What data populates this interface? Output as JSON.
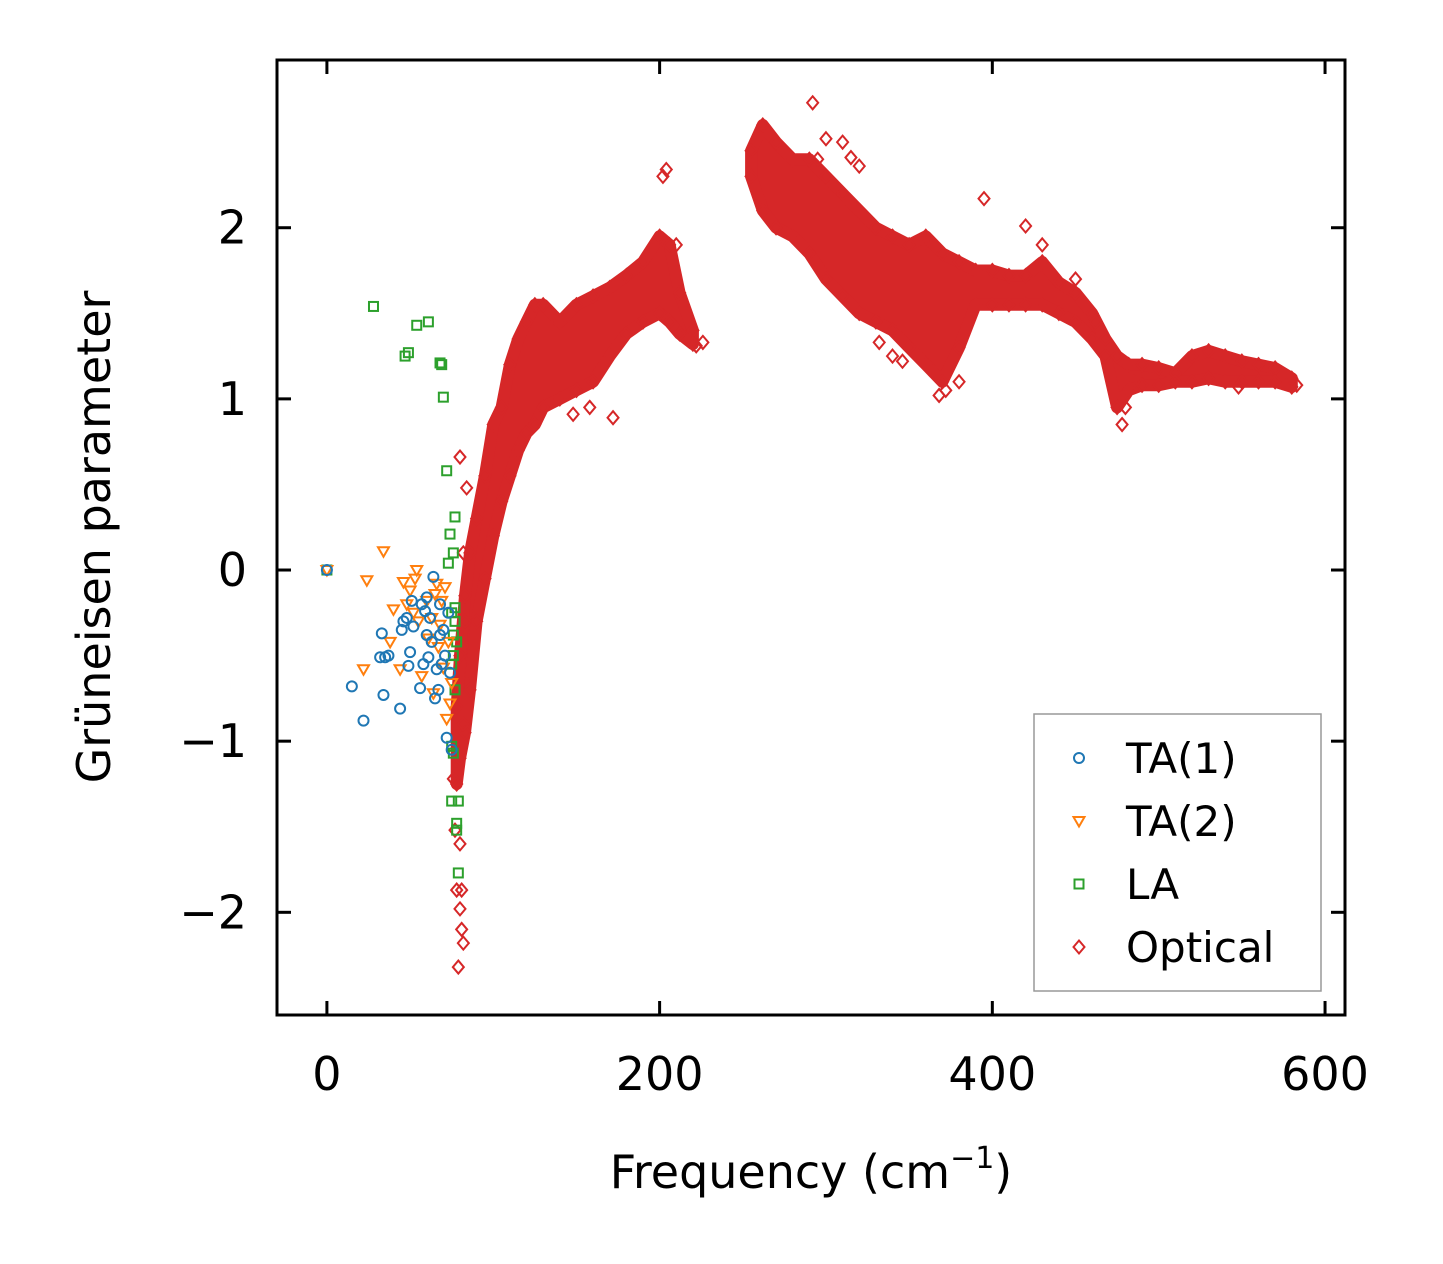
{
  "chart_data": {
    "type": "scatter",
    "xlabel": "Frequency (cm",
    "xlabel_sup": "−1",
    "xlabel_end": ")",
    "ylabel": "Grüneisen parameter",
    "xlim": [
      -30,
      612
    ],
    "ylim": [
      -2.6,
      2.98
    ],
    "x_ticks": [
      0,
      200,
      400,
      600
    ],
    "x_tick_labels": [
      "0",
      "200",
      "400",
      "600"
    ],
    "y_ticks": [
      -2,
      -1,
      0,
      1,
      2
    ],
    "y_tick_labels": [
      "−2",
      "−1",
      "0",
      "1",
      "2"
    ],
    "legend_position": "lower-right",
    "series": [
      {
        "name": "TA(1)",
        "marker": "circle",
        "color": "#1f77b4",
        "points": [
          [
            0,
            0
          ],
          [
            15,
            -0.68
          ],
          [
            22,
            -0.88
          ],
          [
            32,
            -0.51
          ],
          [
            33,
            -0.37
          ],
          [
            34,
            -0.73
          ],
          [
            35,
            -0.51
          ],
          [
            37,
            -0.5
          ],
          [
            44,
            -0.81
          ],
          [
            45,
            -0.35
          ],
          [
            46,
            -0.3
          ],
          [
            48,
            -0.28
          ],
          [
            49,
            -0.56
          ],
          [
            50,
            -0.48
          ],
          [
            51,
            -0.18
          ],
          [
            52,
            -0.33
          ],
          [
            56,
            -0.69
          ],
          [
            57,
            -0.2
          ],
          [
            58,
            -0.55
          ],
          [
            59,
            -0.24
          ],
          [
            60,
            -0.16
          ],
          [
            60,
            -0.38
          ],
          [
            61,
            -0.51
          ],
          [
            62,
            -0.28
          ],
          [
            63,
            -0.42
          ],
          [
            64,
            -0.04
          ],
          [
            65,
            -0.75
          ],
          [
            66,
            -0.58
          ],
          [
            67,
            -0.7
          ],
          [
            68,
            -0.2
          ],
          [
            68,
            -0.38
          ],
          [
            69,
            -0.55
          ],
          [
            70,
            -0.35
          ],
          [
            71,
            -0.5
          ],
          [
            72,
            -0.98
          ],
          [
            73,
            -0.25
          ],
          [
            74,
            -0.6
          ],
          [
            75,
            -1.05
          ]
        ]
      },
      {
        "name": "TA(2)",
        "marker": "triangle-down",
        "color": "#ff7f0e",
        "points": [
          [
            0,
            0
          ],
          [
            22,
            -0.58
          ],
          [
            24,
            -0.06
          ],
          [
            34,
            0.11
          ],
          [
            38,
            -0.42
          ],
          [
            40,
            -0.23
          ],
          [
            44,
            -0.58
          ],
          [
            46,
            -0.07
          ],
          [
            48,
            -0.2
          ],
          [
            50,
            -0.12
          ],
          [
            52,
            -0.25
          ],
          [
            53,
            -0.05
          ],
          [
            54,
            0
          ],
          [
            55,
            -0.3
          ],
          [
            57,
            -0.62
          ],
          [
            60,
            -0.18
          ],
          [
            61,
            -0.4
          ],
          [
            63,
            -0.28
          ],
          [
            64,
            -0.72
          ],
          [
            65,
            -0.14
          ],
          [
            66,
            -0.08
          ],
          [
            67,
            -0.45
          ],
          [
            68,
            -0.32
          ],
          [
            69,
            -0.18
          ],
          [
            70,
            -0.57
          ],
          [
            71,
            -0.1
          ],
          [
            72,
            -0.87
          ],
          [
            73,
            -0.42
          ],
          [
            74,
            -0.78
          ],
          [
            75,
            -0.66
          ]
        ]
      },
      {
        "name": "LA",
        "marker": "square",
        "color": "#2ca02c",
        "points": [
          [
            0,
            0
          ],
          [
            28,
            1.54
          ],
          [
            47,
            1.25
          ],
          [
            49,
            1.27
          ],
          [
            54,
            1.43
          ],
          [
            61,
            1.45
          ],
          [
            68,
            1.21
          ],
          [
            69,
            1.2
          ],
          [
            70,
            1.01
          ],
          [
            72,
            0.58
          ],
          [
            73,
            0.04
          ],
          [
            74,
            0.21
          ],
          [
            76,
            0.1
          ],
          [
            77,
            0.31
          ],
          [
            75,
            -0.25
          ],
          [
            76,
            -0.38
          ],
          [
            76,
            -0.5
          ],
          [
            77,
            -0.22
          ],
          [
            77,
            -0.3
          ],
          [
            78,
            -0.42
          ],
          [
            75,
            -0.55
          ],
          [
            75,
            -1.03
          ],
          [
            76,
            -1.07
          ],
          [
            75,
            -1.35
          ],
          [
            78,
            -1.52
          ],
          [
            78,
            -1.48
          ],
          [
            79,
            -1.35
          ],
          [
            79,
            -1.77
          ],
          [
            77,
            -0.7
          ]
        ]
      },
      {
        "name": "Optical",
        "marker": "diamond",
        "color": "#d62728",
        "points": [
          [
            76,
            -1.22
          ],
          [
            77,
            -1.52
          ],
          [
            78,
            -1.87
          ],
          [
            79,
            -2.32
          ],
          [
            80,
            -1.98
          ],
          [
            81,
            -2.1
          ],
          [
            82,
            -2.18
          ],
          [
            80,
            -1.6
          ],
          [
            81,
            -1.87
          ],
          [
            82,
            -0.9
          ],
          [
            80,
            0.66
          ],
          [
            84,
            0.48
          ],
          [
            82,
            0.1
          ],
          [
            83,
            -0.3
          ],
          [
            85,
            -0.6
          ],
          [
            148,
            0.91
          ],
          [
            158,
            0.95
          ],
          [
            172,
            0.89
          ],
          [
            202,
            2.3
          ],
          [
            204,
            2.34
          ],
          [
            210,
            1.9
          ],
          [
            222,
            1.31
          ],
          [
            226,
            1.33
          ],
          [
            292,
            2.73
          ],
          [
            295,
            2.4
          ],
          [
            300,
            2.52
          ],
          [
            310,
            2.5
          ],
          [
            315,
            2.41
          ],
          [
            320,
            2.36
          ],
          [
            332,
            1.33
          ],
          [
            340,
            1.25
          ],
          [
            346,
            1.22
          ],
          [
            360,
            1.92
          ],
          [
            368,
            1.02
          ],
          [
            372,
            1.05
          ],
          [
            380,
            1.1
          ],
          [
            395,
            2.17
          ],
          [
            420,
            2.01
          ],
          [
            430,
            1.9
          ],
          [
            450,
            1.7
          ],
          [
            462,
            1.45
          ],
          [
            478,
            0.85
          ],
          [
            480,
            0.95
          ],
          [
            485,
            1.1
          ],
          [
            548,
            1.07
          ],
          [
            583,
            1.08
          ]
        ],
        "bands": [
          [
            [
              78,
              -1.25,
              -0.8
            ],
            [
              80,
              -1.1,
              -0.5
            ],
            [
              83,
              -0.95,
              -0.15
            ],
            [
              86,
              -0.7,
              0.1
            ],
            [
              90,
              -0.3,
              0.3
            ],
            [
              95,
              -0.05,
              0.55
            ],
            [
              100,
              0.2,
              0.85
            ],
            [
              105,
              0.4,
              0.95
            ],
            [
              110,
              0.55,
              1.2
            ],
            [
              115,
              0.7,
              1.35
            ],
            [
              120,
              0.8,
              1.45
            ],
            [
              125,
              0.85,
              1.55
            ],
            [
              130,
              0.95,
              1.55
            ],
            [
              140,
              1.0,
              1.45
            ],
            [
              150,
              1.05,
              1.55
            ],
            [
              160,
              1.1,
              1.6
            ],
            [
              170,
              1.25,
              1.65
            ],
            [
              180,
              1.38,
              1.72
            ],
            [
              190,
              1.45,
              1.8
            ],
            [
              200,
              1.5,
              1.95
            ],
            [
              206,
              1.45,
              1.9
            ],
            [
              212,
              1.38,
              1.62
            ],
            [
              220,
              1.32,
              1.4
            ]
          ],
          [
            [
              255,
              2.3,
              2.45
            ],
            [
              262,
              2.1,
              2.6
            ],
            [
              270,
              2.0,
              2.5
            ],
            [
              280,
              1.95,
              2.4
            ],
            [
              290,
              1.85,
              2.4
            ],
            [
              300,
              1.7,
              2.3
            ],
            [
              310,
              1.6,
              2.2
            ],
            [
              320,
              1.5,
              2.1
            ],
            [
              330,
              1.45,
              2.0
            ],
            [
              340,
              1.4,
              1.95
            ],
            [
              350,
              1.3,
              1.9
            ],
            [
              360,
              1.2,
              1.95
            ],
            [
              370,
              1.1,
              1.85
            ],
            [
              380,
              1.3,
              1.8
            ],
            [
              390,
              1.55,
              1.75
            ],
            [
              400,
              1.55,
              1.75
            ],
            [
              410,
              1.55,
              1.72
            ],
            [
              420,
              1.55,
              1.72
            ],
            [
              430,
              1.55,
              1.8
            ],
            [
              440,
              1.5,
              1.68
            ],
            [
              450,
              1.45,
              1.62
            ],
            [
              460,
              1.35,
              1.5
            ],
            [
              468,
              1.25,
              1.35
            ],
            [
              475,
              0.95,
              1.25
            ],
            [
              482,
              1.05,
              1.2
            ],
            [
              490,
              1.08,
              1.2
            ],
            [
              500,
              1.08,
              1.18
            ],
            [
              510,
              1.1,
              1.15
            ],
            [
              520,
              1.1,
              1.25
            ],
            [
              530,
              1.12,
              1.28
            ],
            [
              540,
              1.1,
              1.25
            ],
            [
              550,
              1.1,
              1.22
            ],
            [
              560,
              1.1,
              1.2
            ],
            [
              570,
              1.1,
              1.18
            ],
            [
              580,
              1.07,
              1.12
            ]
          ]
        ]
      }
    ]
  }
}
